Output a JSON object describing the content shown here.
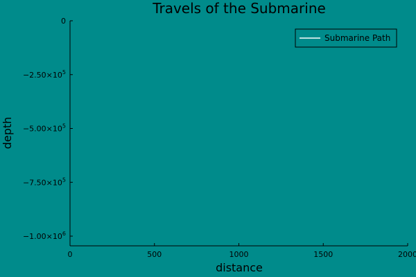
{
  "chart_data": {
    "type": "line",
    "title": "Travels of the Submarine",
    "xlabel": "distance",
    "ylabel": "depth",
    "xlim": [
      0,
      2000
    ],
    "ylim": [
      -1050000,
      0
    ],
    "x_ticks": [
      {
        "value": 0,
        "label": "0"
      },
      {
        "value": 500,
        "label": "500"
      },
      {
        "value": 1000,
        "label": "1000"
      },
      {
        "value": 1500,
        "label": "1500"
      },
      {
        "value": 2000,
        "label": "2000"
      }
    ],
    "y_ticks": [
      {
        "value": 0,
        "mantissa": "0",
        "exponent": ""
      },
      {
        "value": -250000,
        "mantissa": "−2.50×10",
        "exponent": "5"
      },
      {
        "value": -500000,
        "mantissa": "−5.00×10",
        "exponent": "5"
      },
      {
        "value": -750000,
        "mantissa": "−7.50×10",
        "exponent": "5"
      },
      {
        "value": -1000000,
        "mantissa": "−1.00×10",
        "exponent": "6"
      }
    ],
    "grid": false,
    "legend_position": "top-right",
    "series": [
      {
        "name": "Submarine Path",
        "color": "#ffffff",
        "x": [],
        "y": []
      }
    ],
    "background_color": "#008b8b",
    "axis_color": "#000000"
  }
}
